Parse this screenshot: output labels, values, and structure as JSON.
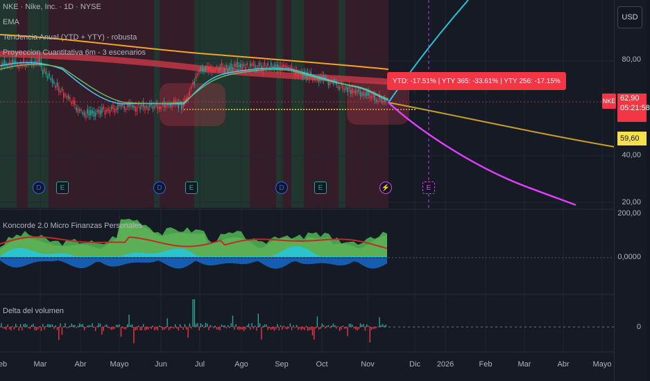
{
  "legend": {
    "symbol_line": "NKE · Nike, Inc. · 1D · NYSE",
    "ema": "EMA",
    "trend": "Tendencia Anual (YTD + YTY) - robusta",
    "projection": "Proyeccion Cuantitativa 6m - 3 escenarios"
  },
  "currency": "USD",
  "price_axis": [
    "80,00",
    "40,00",
    "20,00"
  ],
  "ticker_tag": "NKE",
  "last_price": "62,90",
  "countdown": "05:21:58",
  "projection_price": "59,60",
  "ytd_label": "YTD: -17.51% | YTY 365: -33.61% | YTY 256: -17.15%",
  "koncorde": {
    "title": "Koncorde 2.0 Micro Finanzas Personales",
    "axis": [
      "200,00",
      "0,0000"
    ]
  },
  "volume": {
    "title": "Delta del volumen",
    "axis": "0"
  },
  "time_axis": [
    "eb",
    "Mar",
    "Abr",
    "Mayo",
    "Jun",
    "Jul",
    "Ago",
    "Sep",
    "Oct",
    "Nov",
    "Dic",
    "2026",
    "Feb",
    "Mar",
    "Abr",
    "Mayo"
  ],
  "events": [
    {
      "name": "dividend-marker",
      "glyph": "D"
    },
    {
      "name": "earnings-marker",
      "glyph": "E"
    },
    {
      "name": "dividend-marker",
      "glyph": "D"
    },
    {
      "name": "earnings-marker",
      "glyph": "E"
    },
    {
      "name": "dividend-marker",
      "glyph": "D"
    },
    {
      "name": "earnings-marker",
      "glyph": "E"
    },
    {
      "name": "split-flash-marker",
      "glyph": "⚡"
    },
    {
      "name": "upcoming-earnings-marker",
      "glyph": "E"
    }
  ],
  "colors": {
    "up": "#26a69a",
    "down": "#f23645",
    "ema": "#f5a623",
    "projection_up": "#26c6da",
    "projection_down": "#e040fb",
    "projection_mid": "#c8a02a"
  }
}
